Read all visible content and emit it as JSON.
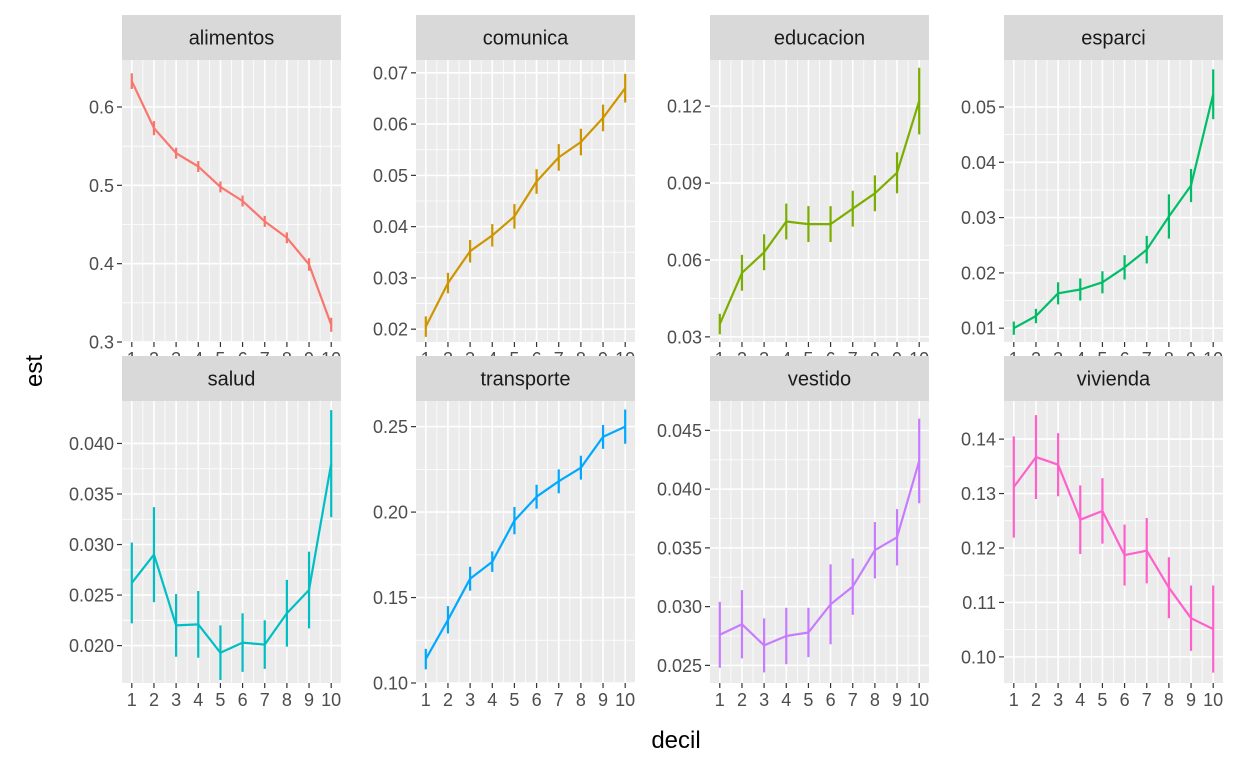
{
  "chart_data": {
    "type": "line",
    "layout": "facet_wrap 2 rows x 4 columns, free y scales",
    "xlabel": "decil",
    "ylabel": "est",
    "x": [
      1,
      2,
      3,
      4,
      5,
      6,
      7,
      8,
      9,
      10
    ],
    "x_tick_labels": [
      "1",
      "2",
      "3",
      "4",
      "5",
      "6",
      "7",
      "8",
      "9",
      "10"
    ],
    "grid": true,
    "panel_background": "#EBEBEB",
    "strip_background": "#D9D9D9",
    "error_bars": true,
    "facets": [
      {
        "name": "alimentos",
        "color": "#F8766D",
        "ylim": [
          0.3,
          0.66
        ],
        "yticks": [
          0.3,
          0.4,
          0.5,
          0.6
        ],
        "ytick_labels": [
          "0.3",
          "0.4",
          "0.5",
          "0.6"
        ],
        "values": [
          0.633,
          0.573,
          0.541,
          0.524,
          0.498,
          0.48,
          0.454,
          0.433,
          0.399,
          0.322
        ],
        "errors": [
          0.01,
          0.009,
          0.007,
          0.007,
          0.007,
          0.007,
          0.007,
          0.007,
          0.008,
          0.009
        ]
      },
      {
        "name": "comunica",
        "color": "#CD9600",
        "ylim": [
          0.0175,
          0.0725
        ],
        "yticks": [
          0.02,
          0.03,
          0.04,
          0.05,
          0.06,
          0.07
        ],
        "ytick_labels": [
          "0.02",
          "0.03",
          "0.04",
          "0.05",
          "0.06",
          "0.07"
        ],
        "values": [
          0.0205,
          0.029,
          0.0352,
          0.0383,
          0.042,
          0.0488,
          0.0535,
          0.0565,
          0.0612,
          0.067
        ],
        "errors": [
          0.002,
          0.002,
          0.0022,
          0.0022,
          0.0024,
          0.0024,
          0.0026,
          0.0026,
          0.0026,
          0.0028
        ]
      },
      {
        "name": "educacion",
        "color": "#7CAE00",
        "ylim": [
          0.028,
          0.138
        ],
        "yticks": [
          0.03,
          0.06,
          0.09,
          0.12
        ],
        "ytick_labels": [
          "0.03",
          "0.06",
          "0.09",
          "0.12"
        ],
        "values": [
          0.035,
          0.055,
          0.063,
          0.075,
          0.074,
          0.074,
          0.08,
          0.086,
          0.094,
          0.122
        ],
        "errors": [
          0.004,
          0.007,
          0.007,
          0.007,
          0.007,
          0.007,
          0.007,
          0.007,
          0.008,
          0.013
        ]
      },
      {
        "name": "esparci",
        "color": "#00BE67",
        "ylim": [
          0.0075,
          0.0585
        ],
        "yticks": [
          0.01,
          0.02,
          0.03,
          0.04,
          0.05
        ],
        "ytick_labels": [
          "0.01",
          "0.02",
          "0.03",
          "0.04",
          "0.05"
        ],
        "values": [
          0.01,
          0.0122,
          0.0163,
          0.017,
          0.0183,
          0.021,
          0.0242,
          0.0302,
          0.0358,
          0.0523
        ],
        "errors": [
          0.0012,
          0.0013,
          0.002,
          0.002,
          0.002,
          0.0022,
          0.0025,
          0.004,
          0.003,
          0.0045
        ]
      },
      {
        "name": "salud",
        "color": "#00BFC4",
        "ylim": [
          0.0163,
          0.0442
        ],
        "yticks": [
          0.02,
          0.025,
          0.03,
          0.035,
          0.04
        ],
        "ytick_labels": [
          "0.020",
          "0.025",
          "0.030",
          "0.035",
          "0.040"
        ],
        "values": [
          0.0262,
          0.029,
          0.022,
          0.0221,
          0.0193,
          0.0203,
          0.0201,
          0.0232,
          0.0255,
          0.038
        ],
        "errors": [
          0.004,
          0.0047,
          0.0031,
          0.0033,
          0.0027,
          0.0029,
          0.0024,
          0.0033,
          0.0038,
          0.0053
        ]
      },
      {
        "name": "transporte",
        "color": "#00A9FF",
        "ylim": [
          0.1,
          0.265
        ],
        "yticks": [
          0.1,
          0.15,
          0.2,
          0.25
        ],
        "ytick_labels": [
          "0.10",
          "0.15",
          "0.20",
          "0.25"
        ],
        "values": [
          0.114,
          0.137,
          0.161,
          0.171,
          0.195,
          0.209,
          0.218,
          0.226,
          0.244,
          0.25
        ],
        "errors": [
          0.006,
          0.008,
          0.007,
          0.006,
          0.008,
          0.007,
          0.007,
          0.007,
          0.007,
          0.01
        ]
      },
      {
        "name": "vestido",
        "color": "#C77CFF",
        "ylim": [
          0.0235,
          0.0475
        ],
        "yticks": [
          0.025,
          0.03,
          0.035,
          0.04,
          0.045
        ],
        "ytick_labels": [
          "0.025",
          "0.030",
          "0.035",
          "0.040",
          "0.045"
        ],
        "values": [
          0.0276,
          0.0285,
          0.0267,
          0.0275,
          0.0278,
          0.0302,
          0.0317,
          0.0348,
          0.0359,
          0.0424
        ],
        "errors": [
          0.0028,
          0.0029,
          0.0023,
          0.0024,
          0.0021,
          0.0034,
          0.0024,
          0.0024,
          0.0024,
          0.0036
        ]
      },
      {
        "name": "vivienda",
        "color": "#FF61CC",
        "ylim": [
          0.0952,
          0.147
        ],
        "yticks": [
          0.1,
          0.11,
          0.12,
          0.13,
          0.14
        ],
        "ytick_labels": [
          "0.10",
          "0.11",
          "0.12",
          "0.13",
          "0.14"
        ],
        "values": [
          0.1312,
          0.1367,
          0.1353,
          0.1252,
          0.1268,
          0.1187,
          0.1195,
          0.1127,
          0.1071,
          0.1051
        ],
        "errors": [
          0.0093,
          0.0077,
          0.0058,
          0.0063,
          0.006,
          0.0056,
          0.006,
          0.0056,
          0.006,
          0.008
        ]
      }
    ]
  }
}
